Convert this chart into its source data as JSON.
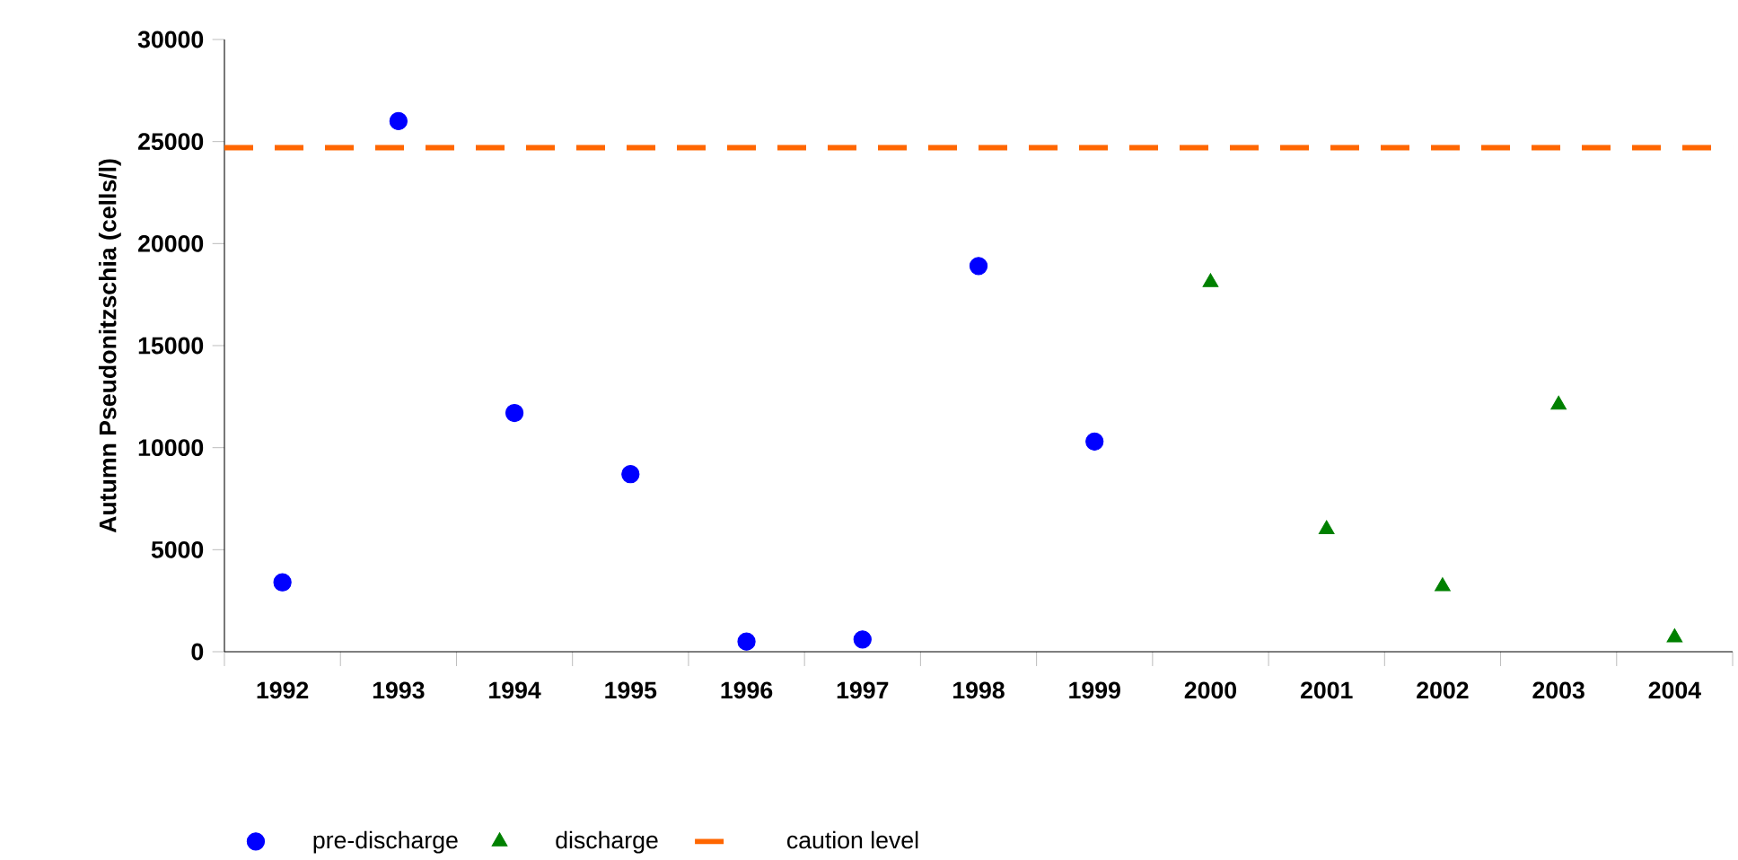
{
  "chart_data": {
    "type": "scatter",
    "ylabel": "Autumn Pseudonitzschia (cells/l)",
    "categories": [
      "1992",
      "1993",
      "1994",
      "1995",
      "1996",
      "1997",
      "1998",
      "1999",
      "2000",
      "2001",
      "2002",
      "2003",
      "2004"
    ],
    "series": [
      {
        "name": "pre-discharge",
        "color": "#0000ff",
        "marker": "circle",
        "values": [
          3400,
          26000,
          11700,
          8700,
          500,
          600,
          18900,
          10300,
          null,
          null,
          null,
          null,
          null
        ]
      },
      {
        "name": "discharge",
        "color": "#008000",
        "marker": "triangle",
        "values": [
          null,
          null,
          null,
          null,
          null,
          null,
          null,
          null,
          18100,
          6000,
          3200,
          12100,
          700
        ]
      }
    ],
    "ref_lines": [
      {
        "axis": "y",
        "value": 24700,
        "label": "caution level",
        "color": "#ff6600",
        "line_style": "dashed"
      }
    ],
    "ylim": [
      0,
      30000
    ],
    "yticks": [
      0,
      5000,
      10000,
      15000,
      20000,
      25000,
      30000
    ],
    "grid": false,
    "legend": "bottom"
  }
}
